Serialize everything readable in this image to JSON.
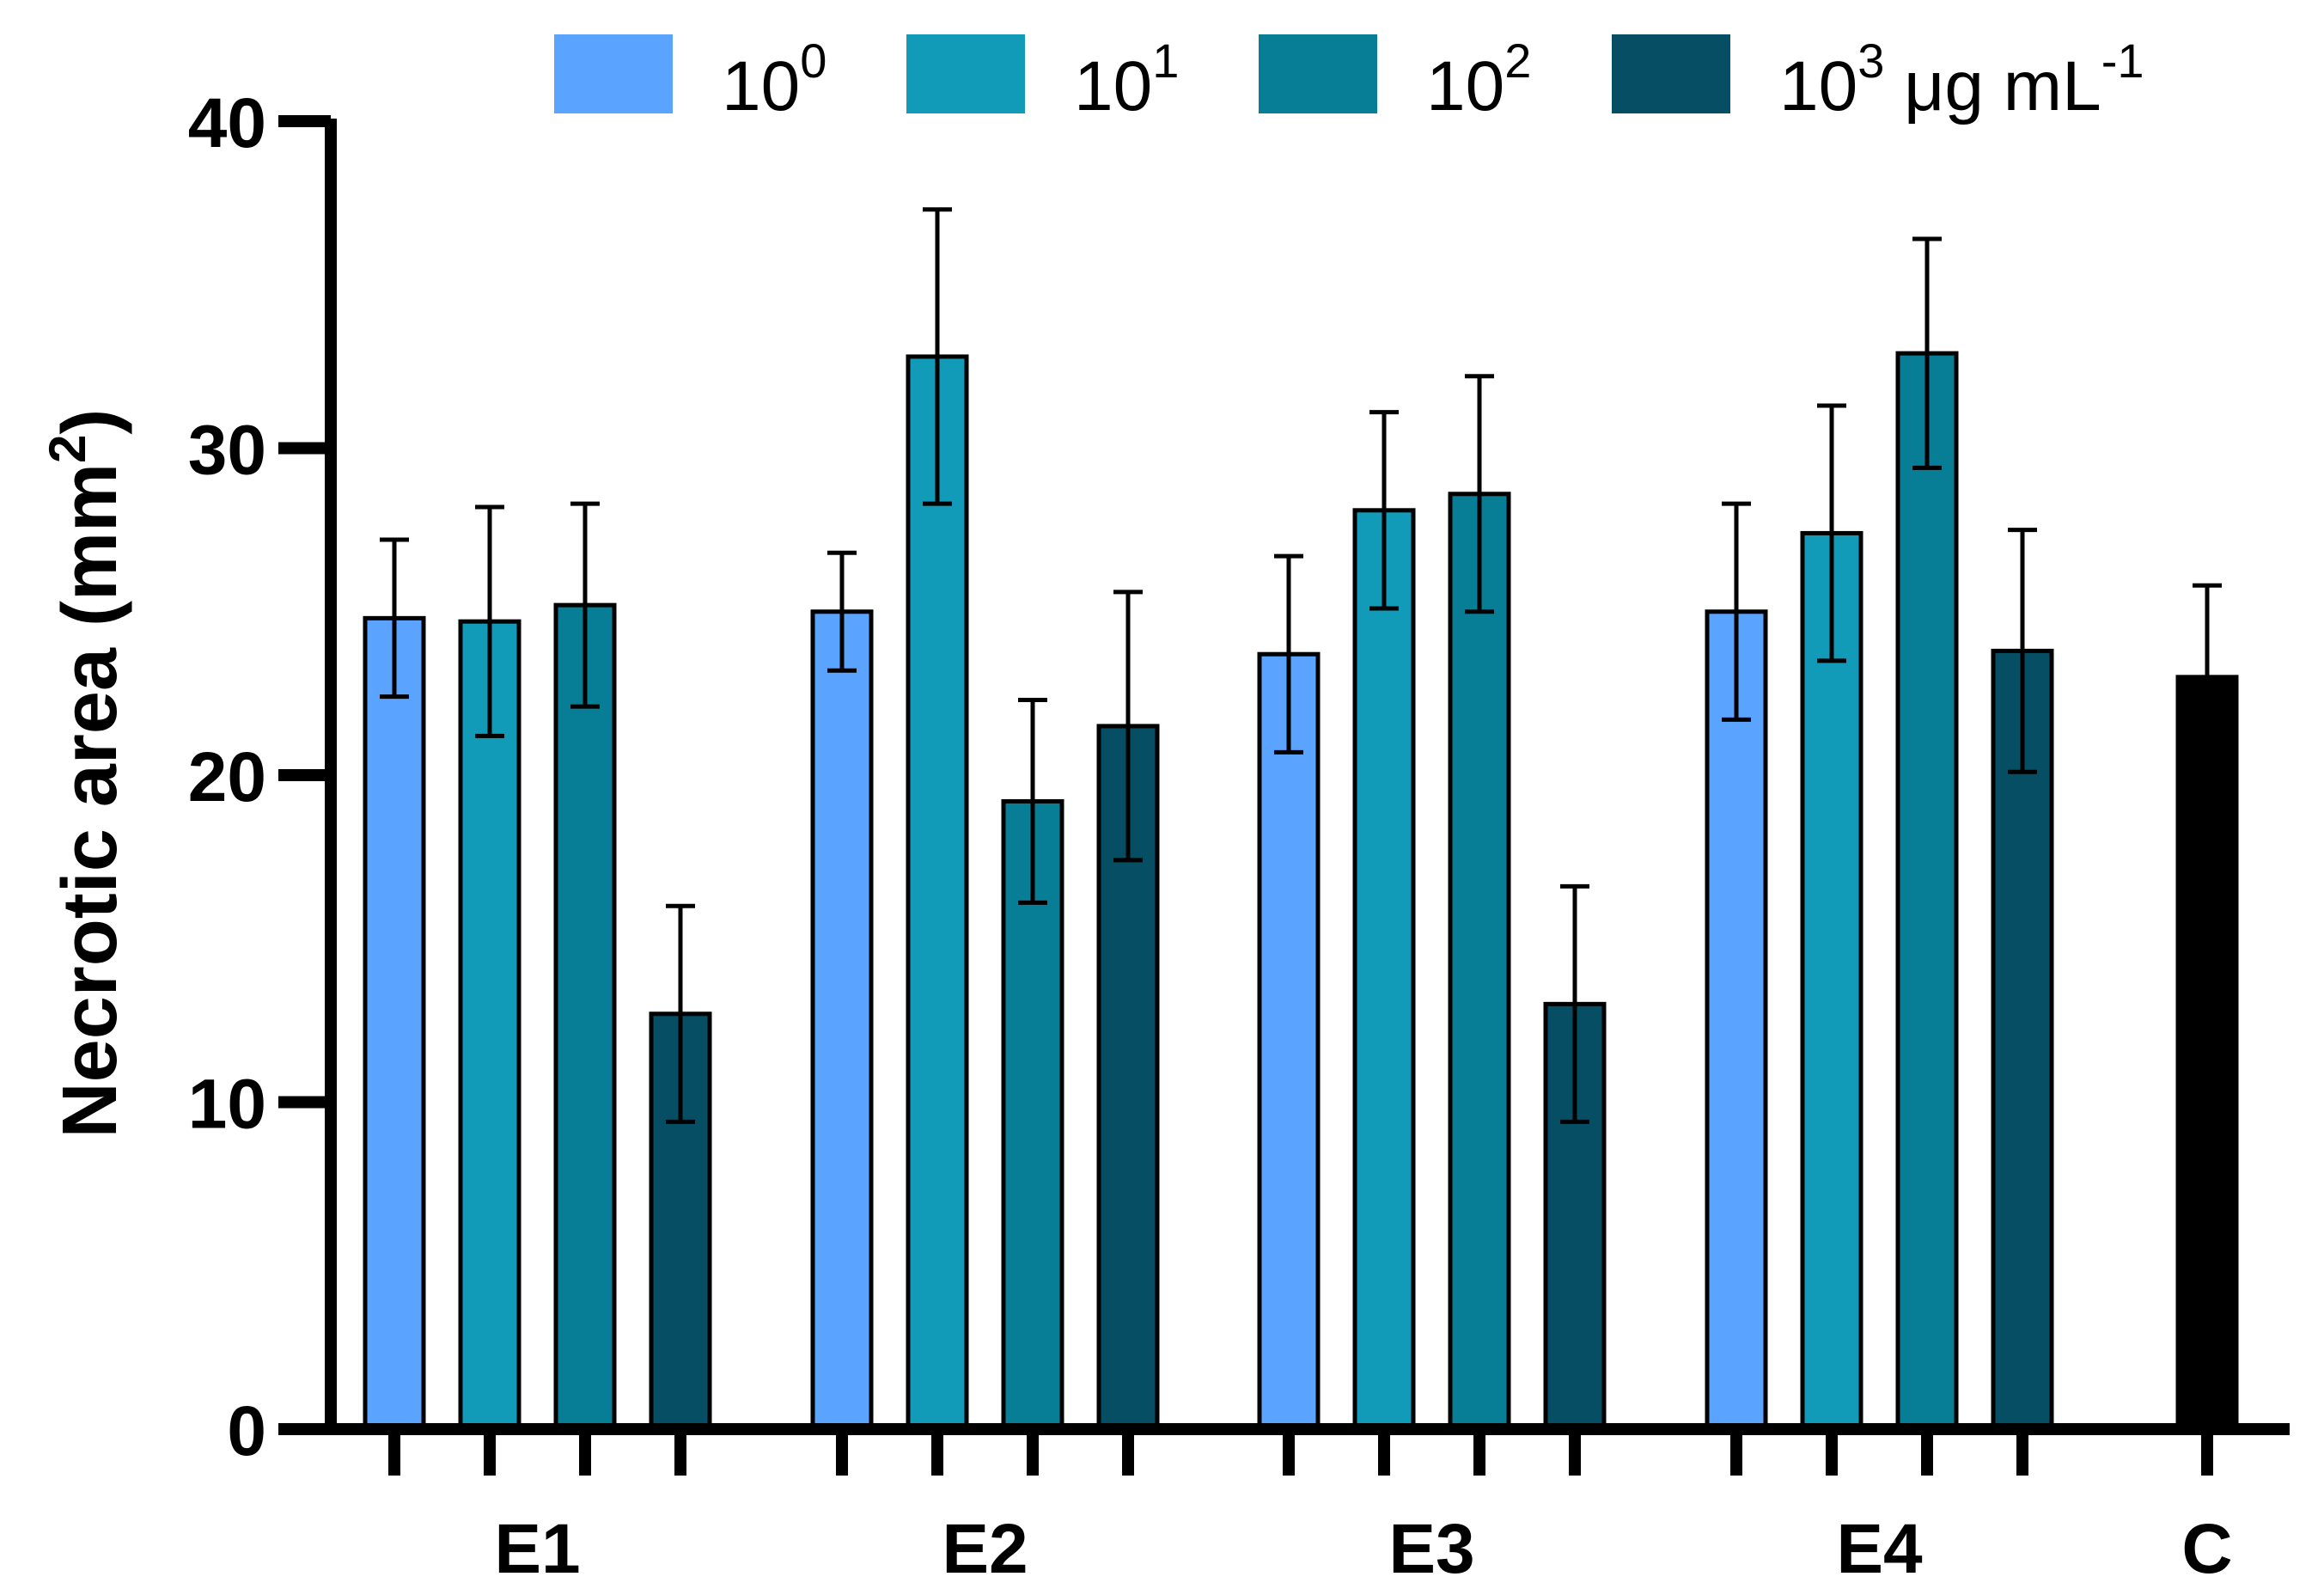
{
  "chart_data": {
    "type": "bar",
    "ylabel": "Necrotic area (mm",
    "ylabel_superscript": "2",
    "ylabel_close": ")",
    "ylim": [
      0,
      40
    ],
    "yticks": [
      0,
      10,
      20,
      30,
      40
    ],
    "groups": [
      "E1",
      "E2",
      "E3",
      "E4",
      "C"
    ],
    "legend": {
      "position": "top-right",
      "entries": [
        {
          "base": "10",
          "sup": "0",
          "suffix": "",
          "suffix_sup": "",
          "color": "#5AA3FF"
        },
        {
          "base": "10",
          "sup": "1",
          "suffix": "",
          "suffix_sup": "",
          "color": "#129BB8"
        },
        {
          "base": "10",
          "sup": "2",
          "suffix": "",
          "suffix_sup": "",
          "color": "#077E95"
        },
        {
          "base": "10",
          "sup": "3",
          "suffix": " μg mL",
          "suffix_sup": "-1",
          "color": "#054E63"
        }
      ]
    },
    "series": [
      {
        "name": "10^0",
        "color": "#5AA3FF",
        "values": [
          24.8,
          25.0,
          23.7,
          25.0
        ],
        "errors": [
          2.4,
          1.8,
          3.0,
          3.3
        ]
      },
      {
        "name": "10^1",
        "color": "#129BB8",
        "values": [
          24.7,
          32.8,
          28.1,
          27.4
        ],
        "errors": [
          3.5,
          4.5,
          3.0,
          3.9
        ]
      },
      {
        "name": "10^2",
        "color": "#077E95",
        "values": [
          25.2,
          19.2,
          28.6,
          32.9
        ],
        "errors": [
          3.1,
          3.1,
          3.6,
          3.5
        ]
      },
      {
        "name": "10^3",
        "color": "#054E63",
        "values": [
          12.7,
          21.5,
          13.0,
          23.8
        ],
        "errors": [
          3.3,
          4.1,
          3.6,
          3.7
        ]
      }
    ],
    "control": {
      "name": "C",
      "color": "#000000",
      "value": 23.0,
      "error": 2.8
    }
  }
}
